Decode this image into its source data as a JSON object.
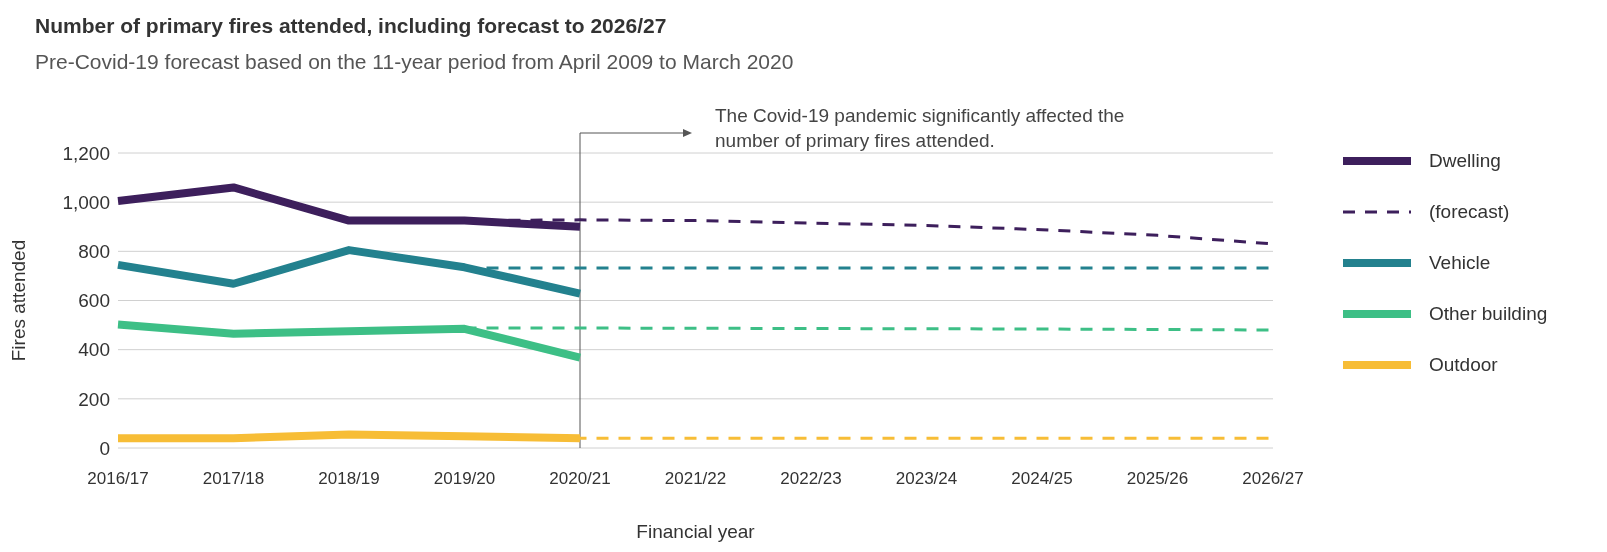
{
  "chart_data": {
    "type": "line",
    "title": "Number of primary fires attended, including forecast to 2026/27",
    "subtitle": "Pre-Covid-19 forecast based on the 11-year period from April 2009 to March 2020",
    "xlabel": "Financial year",
    "ylabel": "Fires attended",
    "categories": [
      "2016/17",
      "2017/18",
      "2018/19",
      "2019/20",
      "2020/21",
      "2021/22",
      "2022/23",
      "2023/24",
      "2024/25",
      "2025/26",
      "2026/27"
    ],
    "series": [
      {
        "name": "Dwelling",
        "color": "#3d1f5c",
        "line_style": "solid",
        "values": [
          1005,
          1060,
          925,
          925,
          900,
          null,
          null,
          null,
          null,
          null,
          null
        ]
      },
      {
        "name": "(forecast)",
        "color": "#3d1f5c",
        "line_style": "dashed",
        "values": [
          null,
          null,
          null,
          925,
          928,
          925,
          915,
          905,
          888,
          865,
          830
        ]
      },
      {
        "name": "Vehicle",
        "color": "#23818e",
        "line_style": "solid",
        "values": [
          745,
          668,
          805,
          735,
          628,
          null,
          null,
          null,
          null,
          null,
          null
        ]
      },
      {
        "color": "#23818e",
        "line_style": "dashed",
        "values": [
          null,
          null,
          null,
          732,
          732,
          732,
          732,
          732,
          732,
          732,
          732
        ]
      },
      {
        "name": "Other building",
        "color": "#3dbf86",
        "line_style": "solid",
        "values": [
          502,
          465,
          475,
          485,
          368,
          null,
          null,
          null,
          null,
          null,
          null
        ]
      },
      {
        "color": "#3dbf86",
        "line_style": "dashed",
        "values": [
          null,
          null,
          null,
          488,
          488,
          487,
          486,
          485,
          484,
          482,
          480
        ]
      },
      {
        "name": "Outdoor",
        "color": "#f7bd36",
        "line_style": "solid",
        "values": [
          40,
          40,
          55,
          48,
          40,
          null,
          null,
          null,
          null,
          null,
          null
        ]
      },
      {
        "color": "#f7bd36",
        "line_style": "dashed",
        "values": [
          null,
          null,
          null,
          40,
          40,
          40,
          40,
          40,
          40,
          40,
          40
        ]
      }
    ],
    "ylim": [
      0,
      1200
    ],
    "yticks": [
      0,
      {
        "value": 200,
        "label": "200"
      },
      {
        "value": 400,
        "label": "400"
      },
      {
        "value": 600,
        "label": "600"
      },
      {
        "value": 800,
        "label": "800"
      },
      {
        "value": 1000,
        "label": "1,000"
      },
      {
        "value": 1200,
        "label": "1,200"
      }
    ],
    "grid": "y",
    "legend": "right",
    "marker": "none",
    "ref_lines": [
      {
        "axis": "x",
        "value": "2020/21",
        "color": "#555555"
      }
    ],
    "annotations": [
      "The Covid-19 pandemic significantly affected the number of primary fires attended."
    ]
  }
}
